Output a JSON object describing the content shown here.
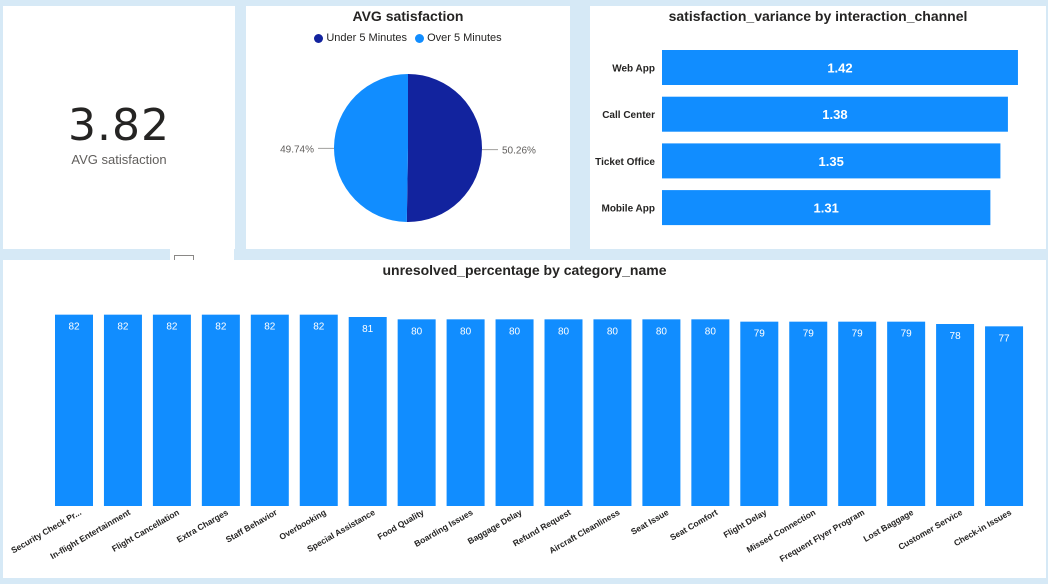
{
  "kpi": {
    "value": "3.82",
    "label": "AVG satisfaction"
  },
  "chart_data": [
    {
      "type": "pie",
      "title": "AVG satisfaction",
      "legend_position": "top-center",
      "slices": [
        {
          "name": "Under 5 Minutes",
          "value": 50.26,
          "label": "50.26%",
          "color": "#12239e"
        },
        {
          "name": "Over 5 Minutes",
          "value": 49.74,
          "label": "49.74%",
          "color": "#118dff"
        }
      ]
    },
    {
      "type": "bar",
      "orientation": "horizontal",
      "title": "satisfaction_variance by interaction_channel",
      "categories": [
        "Web App",
        "Call Center",
        "Ticket Office",
        "Mobile App"
      ],
      "values": [
        1.42,
        1.38,
        1.35,
        1.31
      ],
      "labels": [
        "1.42",
        "1.38",
        "1.35",
        "1.31"
      ],
      "color": "#118dff",
      "xlim": [
        0,
        1.5
      ]
    },
    {
      "type": "bar",
      "orientation": "vertical",
      "title": "unresolved_percentage by category_name",
      "categories": [
        "Security Check Pr...",
        "In-flight Entertainment",
        "Flight Cancellation",
        "Extra Charges",
        "Staff Behavior",
        "Overbooking",
        "Special Assistance",
        "Food Quality",
        "Boarding Issues",
        "Baggage Delay",
        "Refund Request",
        "Aircraft Cleanliness",
        "Seat Issue",
        "Seat Comfort",
        "Flight Delay",
        "Missed Connection",
        "Frequent Flyer Program",
        "Lost Baggage",
        "Customer Service",
        "Check-in Issues"
      ],
      "values": [
        82,
        82,
        82,
        82,
        82,
        82,
        81,
        80,
        80,
        80,
        80,
        80,
        80,
        80,
        79,
        79,
        79,
        79,
        78,
        77
      ],
      "color": "#118dff",
      "ylim": [
        0,
        84
      ]
    }
  ]
}
